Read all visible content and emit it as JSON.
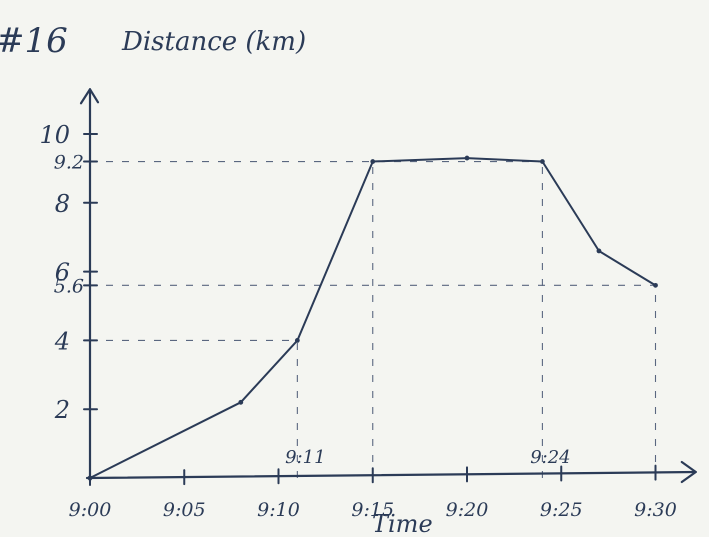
{
  "corner_label": "#16",
  "chart_data": {
    "type": "line",
    "ylabel": "Distance (km)",
    "xlabel": "Time",
    "x_ticks": [
      "9:00",
      "9:05",
      "9:10",
      "9:15",
      "9:20",
      "9:25",
      "9:30"
    ],
    "x_ticks_minutes": [
      0,
      5,
      10,
      15,
      20,
      25,
      30
    ],
    "y_ticks": [
      "2",
      "4",
      "6",
      "8",
      "10"
    ],
    "y_ticks_values": [
      2,
      4,
      6,
      8,
      10
    ],
    "y_extra_labels": [
      {
        "label": "9.2",
        "value": 9.2
      },
      {
        "label": "5.6",
        "value": 5.6
      }
    ],
    "x_extra_labels": [
      {
        "label": "9:11",
        "minute": 11
      },
      {
        "label": "9:24",
        "minute": 24
      }
    ],
    "xlim_minutes": [
      0,
      31.5
    ],
    "ylim": [
      0,
      11.3
    ],
    "series": [
      {
        "points": [
          {
            "x": "9:00",
            "minute": 0,
            "y": 0
          },
          {
            "x": "9:08",
            "minute": 8,
            "y": 2.2
          },
          {
            "x": "9:11",
            "minute": 11,
            "y": 4
          },
          {
            "x": "9:15",
            "minute": 15,
            "y": 9.2
          },
          {
            "x": "9:20",
            "minute": 20,
            "y": 9.3
          },
          {
            "x": "9:24",
            "minute": 24,
            "y": 9.2
          },
          {
            "x": "9:27",
            "minute": 27,
            "y": 6.6
          },
          {
            "x": "9:30",
            "minute": 30,
            "y": 5.6
          }
        ]
      }
    ],
    "reference_lines": [
      {
        "kind": "h",
        "value": 9.2,
        "from_minute": 0,
        "to_minute": 24
      },
      {
        "kind": "h",
        "value": 5.6,
        "from_minute": 0,
        "to_minute": 30
      },
      {
        "kind": "h",
        "value": 4,
        "from_minute": 0,
        "to_minute": 11
      },
      {
        "kind": "v",
        "minute": 11,
        "from_value": 0,
        "to_value": 4
      },
      {
        "kind": "v",
        "minute": 15,
        "from_value": 0,
        "to_value": 9.2
      },
      {
        "kind": "v",
        "minute": 24,
        "from_value": 0,
        "to_value": 9.2
      },
      {
        "kind": "v",
        "minute": 30,
        "from_value": 0,
        "to_value": 5.6
      }
    ],
    "grid": false,
    "legend": "none"
  }
}
